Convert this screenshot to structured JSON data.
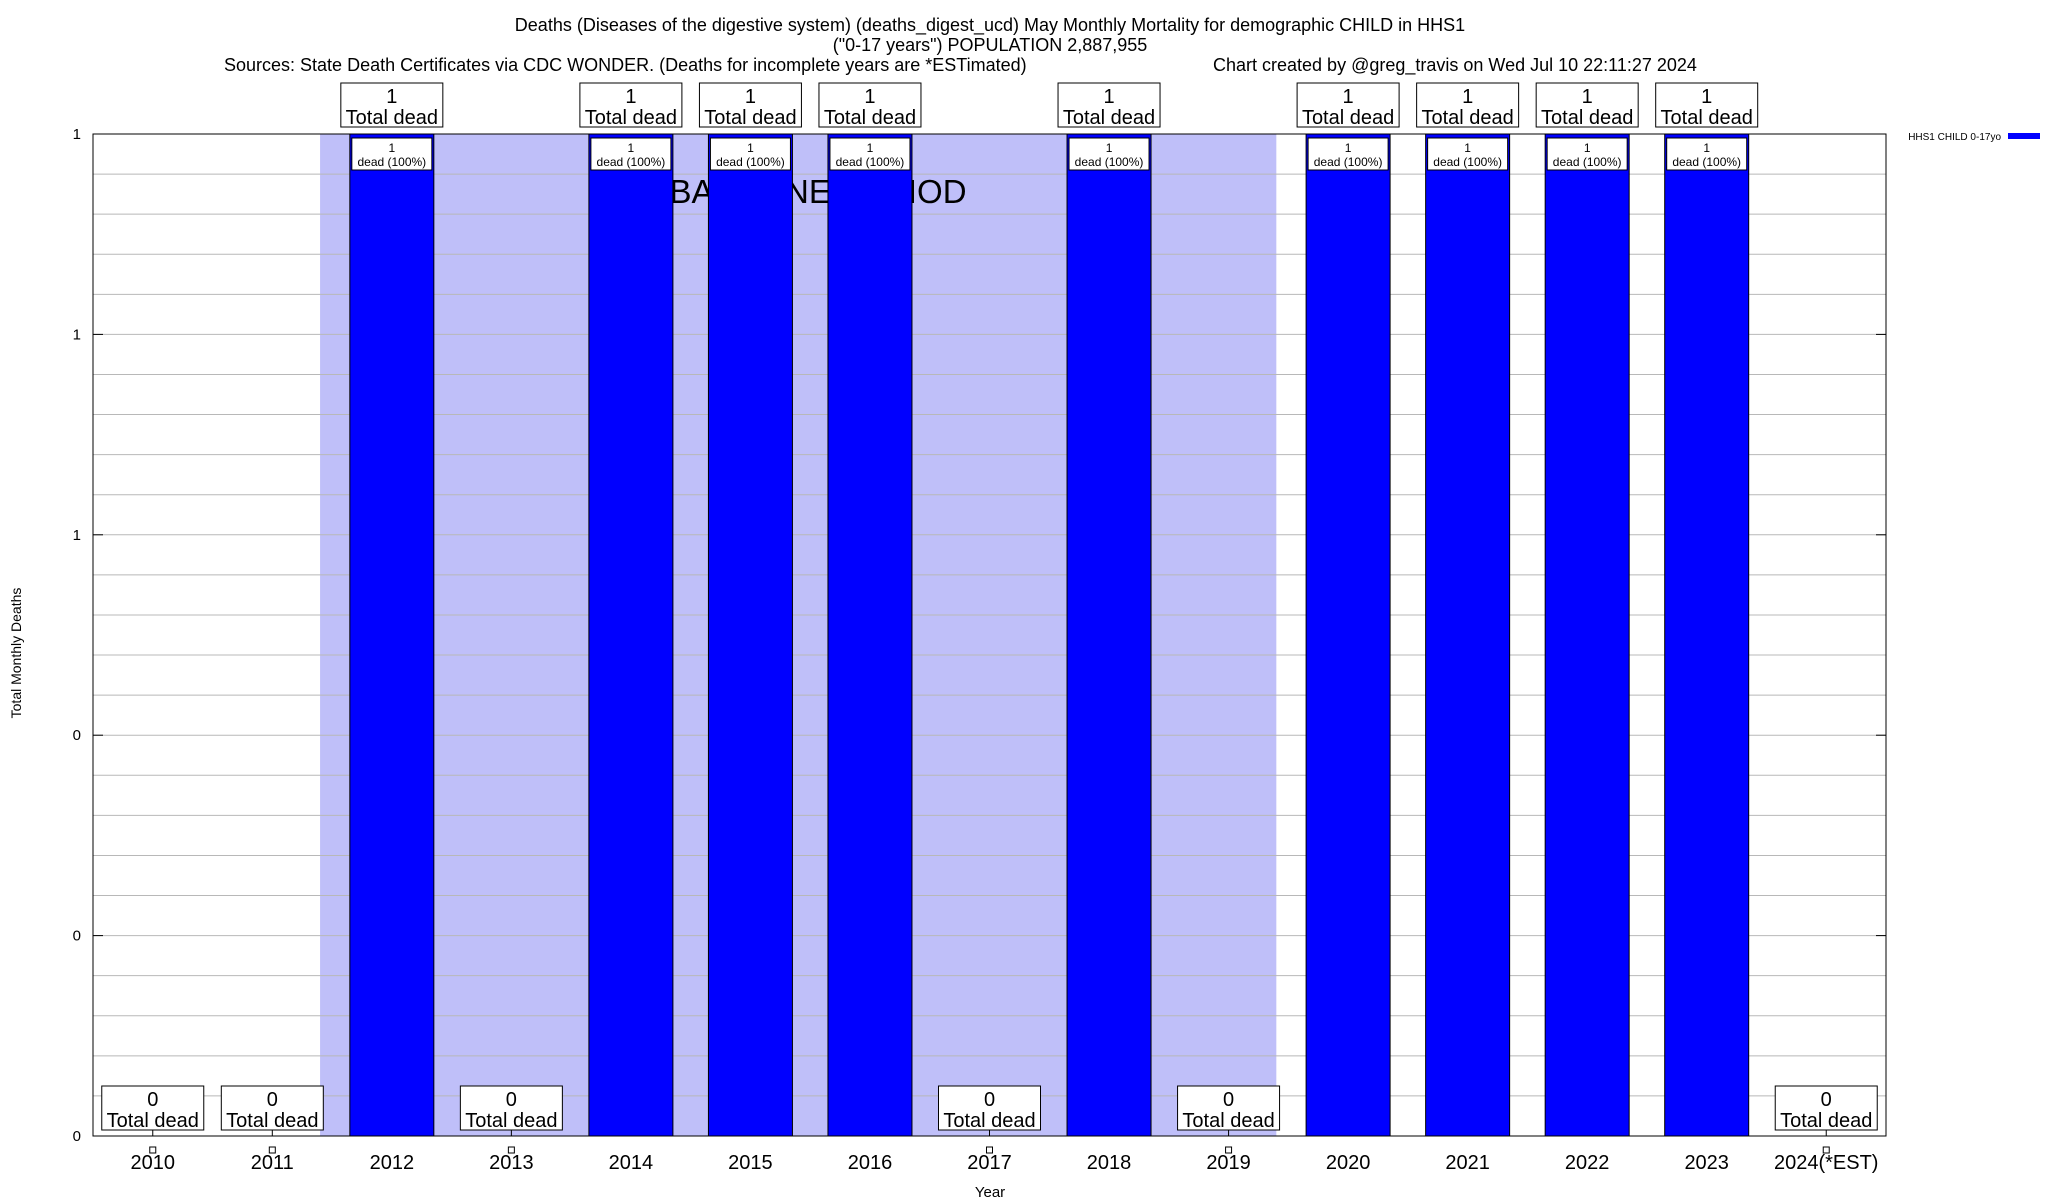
{
  "chart_data": {
    "type": "bar",
    "title": "Deaths (Diseases of the digestive system) (deaths_digest_ucd) May Monthly Mortality for demographic CHILD in HHS1",
    "subtitle": "(\"0-17 years\") POPULATION 2,887,955",
    "sources": "Sources: State Death Certificates via CDC WONDER. (Deaths for incomplete years are *ESTimated)",
    "credit": "Chart created by @greg_travis on Wed Jul 10 22:11:27 2024",
    "xlabel": "Year",
    "ylabel": "Total Monthly Deaths",
    "ylim": [
      0,
      1
    ],
    "y_tick_labels": [
      "0",
      "0",
      "0",
      "1",
      "1",
      "1"
    ],
    "categories": [
      "2010",
      "2011",
      "2012",
      "2013",
      "2014",
      "2015",
      "2016",
      "2017",
      "2018",
      "2019",
      "2020",
      "2021",
      "2022",
      "2023",
      "2024(*EST)"
    ],
    "series": [
      {
        "name": "HHS1 CHILD 0-17yo",
        "color": "#0000ff",
        "values": [
          0,
          0,
          1,
          0,
          1,
          1,
          1,
          0,
          1,
          0,
          1,
          1,
          1,
          1,
          0
        ]
      }
    ],
    "total_labels": [
      "0",
      "0",
      "1",
      "0",
      "1",
      "1",
      "1",
      "0",
      "1",
      "0",
      "1",
      "1",
      "1",
      "1",
      "0"
    ],
    "total_label_suffix": "Total dead",
    "bar_label_value": "1",
    "bar_label_text": "dead (100%)",
    "baseline": {
      "label": "BASELINE PERIOD",
      "start_year": "2012",
      "end_year": "2019",
      "color": "#bfbff9"
    },
    "grid": true,
    "legend_position": "top-right"
  }
}
